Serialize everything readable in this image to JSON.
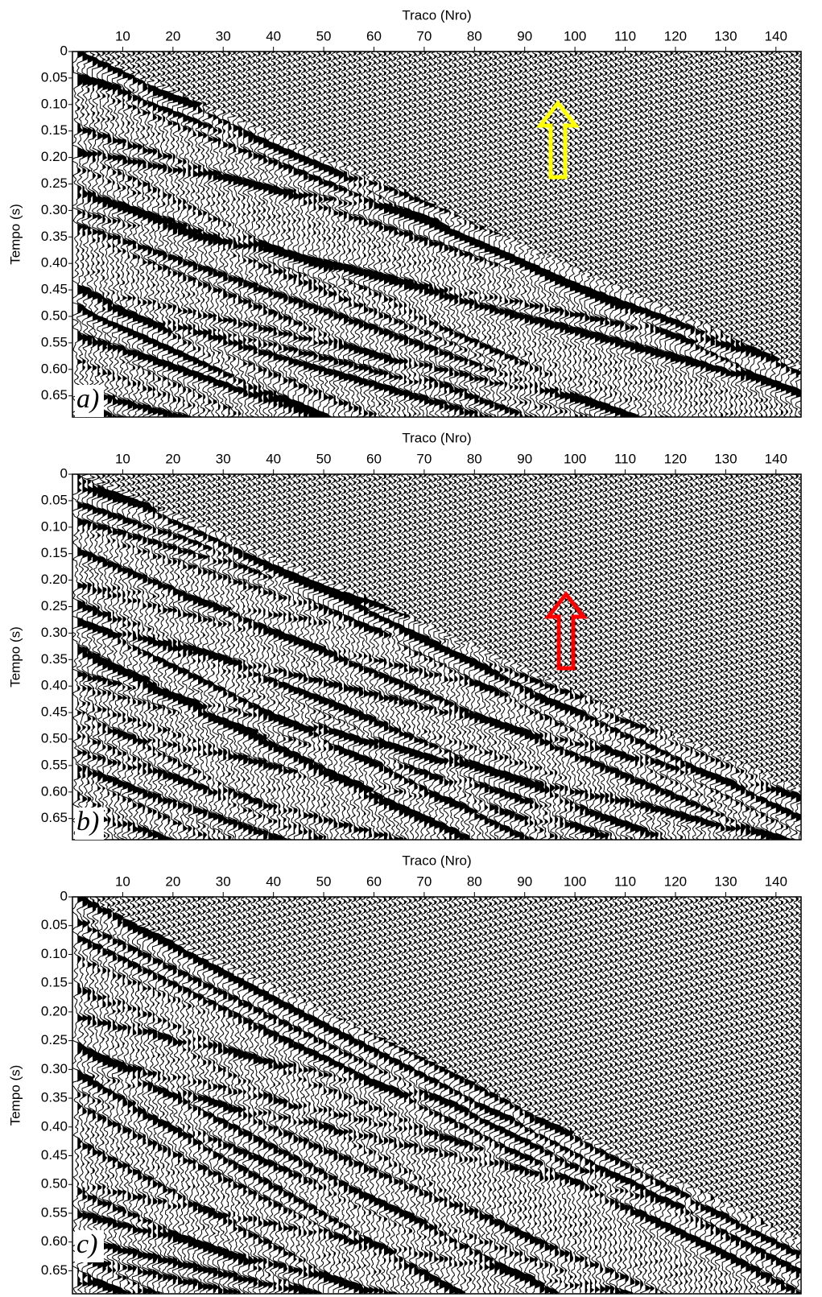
{
  "chart_data": [
    {
      "type": "seismic",
      "x_label": "Traco (Nro)",
      "y_label": "Tempo (s)",
      "panel_label": "a)",
      "xlim": [
        0,
        145
      ],
      "xticks": [
        10,
        20,
        30,
        40,
        50,
        60,
        70,
        80,
        90,
        100,
        110,
        120,
        130,
        140
      ],
      "ylim": [
        0,
        0.69
      ],
      "yticks": [
        0,
        0.05,
        {
          "value": 0.1,
          "label": "0.10"
        },
        0.15,
        {
          "value": 0.2,
          "label": "0.20"
        },
        0.25,
        {
          "value": 0.3,
          "label": "0.30"
        },
        0.35,
        {
          "value": 0.4,
          "label": "0.40"
        },
        0.45,
        {
          "value": 0.5,
          "label": "0.50"
        },
        0.55,
        {
          "value": 0.6,
          "label": "0.60"
        },
        0.65
      ]
    },
    {
      "type": "seismic",
      "x_label": "Traco (Nro)",
      "y_label": "Tempo (s)",
      "panel_label": "b)",
      "xlim": [
        0,
        145
      ],
      "xticks": [
        10,
        20,
        30,
        40,
        50,
        60,
        70,
        80,
        90,
        100,
        110,
        120,
        130,
        140
      ],
      "ylim": [
        0,
        0.69
      ],
      "yticks": [
        0,
        0.05,
        {
          "value": 0.1,
          "label": "0.10"
        },
        0.15,
        {
          "value": 0.2,
          "label": "0.20"
        },
        0.25,
        {
          "value": 0.3,
          "label": "0.30"
        },
        0.35,
        {
          "value": 0.4,
          "label": "0.40"
        },
        0.45,
        {
          "value": 0.5,
          "label": "0.50"
        },
        0.55,
        {
          "value": 0.6,
          "label": "0.60"
        },
        0.65
      ]
    },
    {
      "type": "seismic",
      "x_label": "Traco (Nro)",
      "y_label": "Tempo (s)",
      "panel_label": "c)",
      "xlim": [
        0,
        145
      ],
      "xticks": [
        10,
        20,
        30,
        40,
        50,
        60,
        70,
        80,
        90,
        100,
        110,
        120,
        130,
        140
      ],
      "ylim": [
        0,
        0.69
      ],
      "yticks": [
        0,
        0.05,
        {
          "value": 0.1,
          "label": "0.10"
        },
        0.15,
        {
          "value": 0.2,
          "label": "0.20"
        },
        0.25,
        {
          "value": 0.3,
          "label": "0.30"
        },
        0.35,
        {
          "value": 0.4,
          "label": "0.40"
        },
        0.45,
        {
          "value": 0.5,
          "label": "0.50"
        },
        0.55,
        {
          "value": 0.6,
          "label": "0.60"
        },
        0.65
      ]
    }
  ]
}
